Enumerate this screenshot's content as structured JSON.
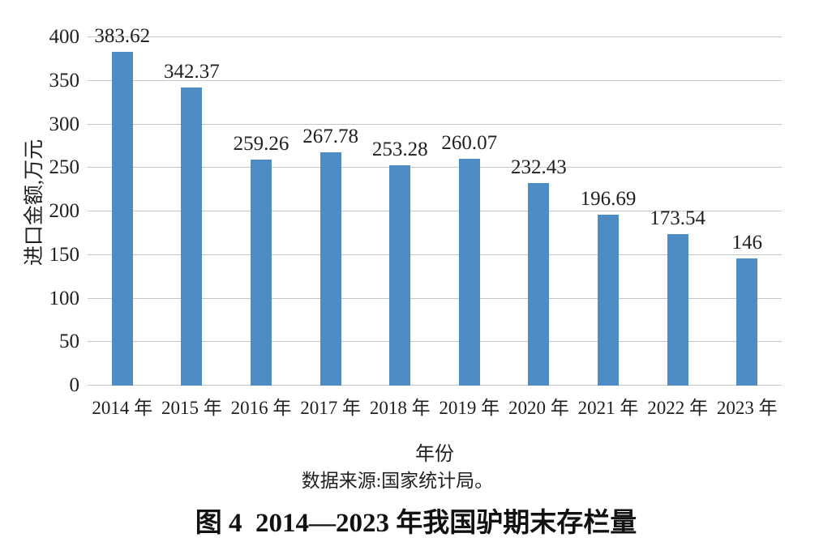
{
  "chart_data": {
    "type": "bar",
    "title": "",
    "categories": [
      "2014 年",
      "2015 年",
      "2016 年",
      "2017 年",
      "2018 年",
      "2019 年",
      "2020 年",
      "2021 年",
      "2022 年",
      "2023 年"
    ],
    "values": [
      383.62,
      342.37,
      259.26,
      267.78,
      253.28,
      260.07,
      232.43,
      196.69,
      173.54,
      146
    ],
    "value_labels": [
      "383.62",
      "342.37",
      "259.26",
      "267.78",
      "253.28",
      "260.07",
      "232.43",
      "196.69",
      "173.54",
      "146"
    ],
    "xlabel": "年份",
    "ylabel": "进口金额,万元",
    "ylim": [
      0,
      400
    ],
    "yticks": [
      0,
      50,
      100,
      150,
      200,
      250,
      300,
      350,
      400
    ],
    "grid": "horizontal",
    "legend": "none",
    "colors": {
      "bar": "#4e8cc5",
      "gridline": "#c6c6c6",
      "text": "#1f1f1f"
    }
  },
  "source": {
    "text": "数据来源:国家统计局。"
  },
  "caption": {
    "text": "图 4  2014—2023 年我国驴期末存栏量"
  }
}
